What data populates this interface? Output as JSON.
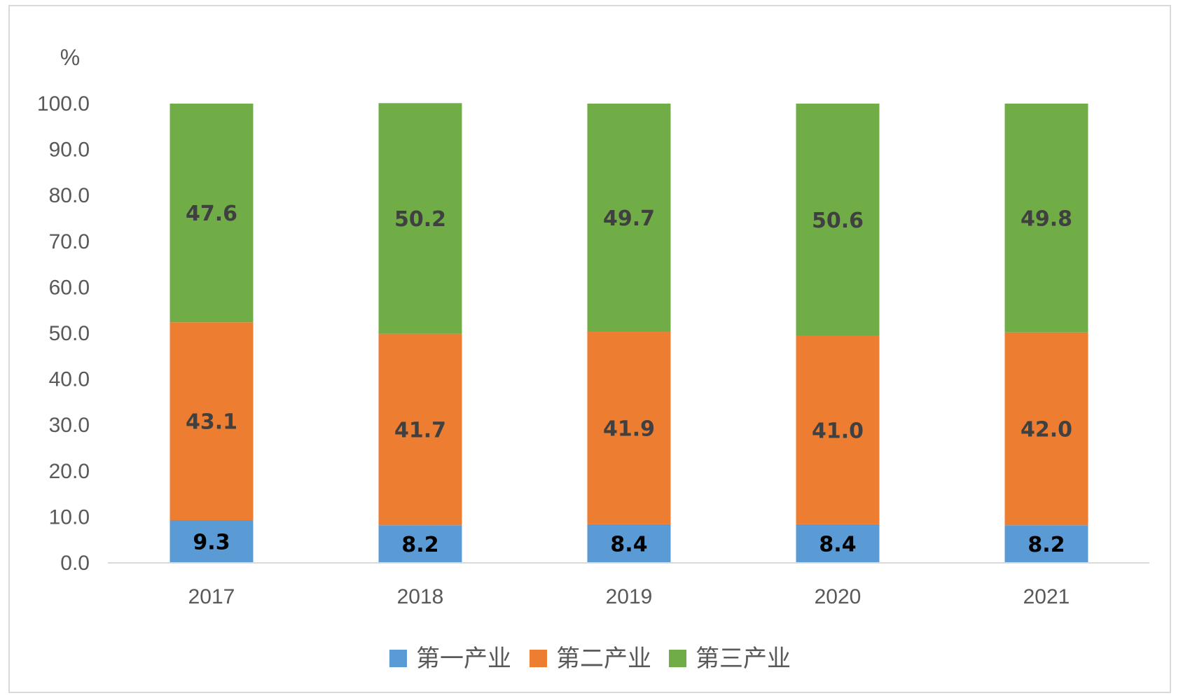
{
  "chart_data": {
    "type": "bar",
    "stacked": true,
    "title": "",
    "xlabel": "",
    "ylabel": "%",
    "ylim": [
      0,
      100
    ],
    "yticks": [
      "0.0",
      "10.0",
      "20.0",
      "30.0",
      "40.0",
      "50.0",
      "60.0",
      "70.0",
      "80.0",
      "90.0",
      "100.0"
    ],
    "categories": [
      "2017",
      "2018",
      "2019",
      "2020",
      "2021"
    ],
    "series": [
      {
        "name": "第一产业",
        "color": "#5b9bd5",
        "label_color": "#000000",
        "values": [
          9.3,
          8.2,
          8.4,
          8.4,
          8.2
        ],
        "labels": [
          "9.3",
          "8.2",
          "8.4",
          "8.4",
          "8.2"
        ]
      },
      {
        "name": "第二产业",
        "color": "#ed7d31",
        "label_color": "#404040",
        "values": [
          43.1,
          41.7,
          41.9,
          41.0,
          42.0
        ],
        "labels": [
          "43.1",
          "41.7",
          "41.9",
          "41.0",
          "42.0"
        ]
      },
      {
        "name": "第三产业",
        "color": "#70ad47",
        "label_color": "#404040",
        "values": [
          47.6,
          50.2,
          49.7,
          50.6,
          49.8
        ],
        "labels": [
          "47.6",
          "50.2",
          "49.7",
          "50.6",
          "49.8"
        ]
      }
    ],
    "grid": false,
    "legend_position": "bottom"
  }
}
